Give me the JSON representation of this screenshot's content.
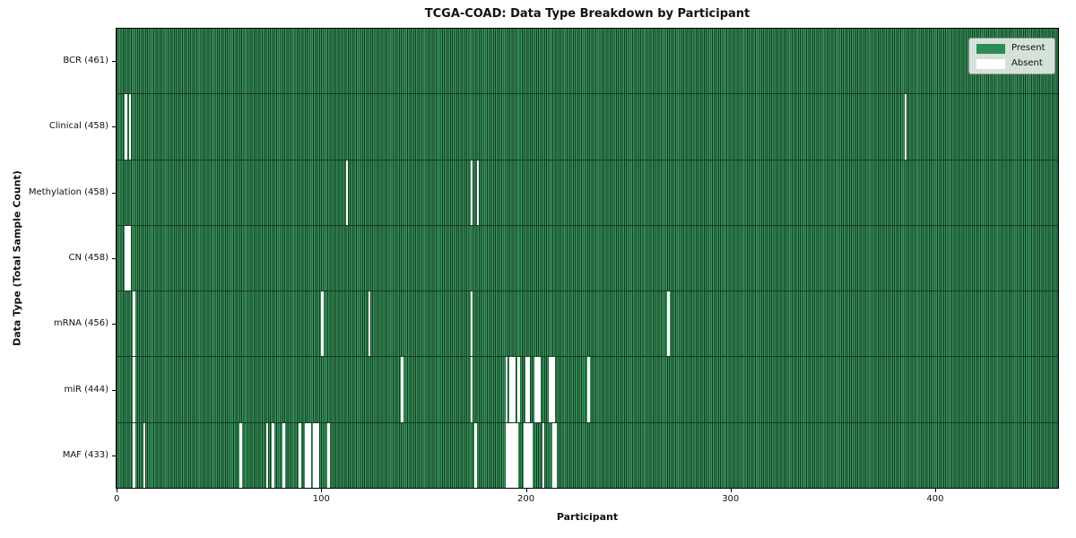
{
  "title": "TCGA-COAD: Data Type Breakdown by Participant",
  "colors": {
    "present": "#2E8B57",
    "present_stripe_light": "#37965f",
    "bar_edge": "#15381f",
    "absent": "#ffffff",
    "spine": "#000000"
  },
  "legend": {
    "entries": [
      {
        "label": "Present",
        "swatch": "present"
      },
      {
        "label": "Absent",
        "swatch": "absent"
      }
    ]
  },
  "chart_data": {
    "type": "heatmap",
    "title": "TCGA-COAD: Data Type Breakdown by Participant",
    "xlabel": "Participant",
    "ylabel": "Data Type (Total Sample Count)",
    "x_ticks": [
      0,
      100,
      200,
      300,
      400
    ],
    "x_range": [
      0,
      461
    ],
    "total_participants": 461,
    "legend_labels": [
      "Present",
      "Absent"
    ],
    "legend_position": "upper right",
    "grid": false,
    "rows": [
      {
        "name": "BCR",
        "label": "BCR (461)",
        "count": 461,
        "missing": []
      },
      {
        "name": "Clinical",
        "label": "Clinical (458)",
        "count": 458,
        "missing": [
          4,
          6,
          385
        ]
      },
      {
        "name": "Methylation",
        "label": "Methylation (458)",
        "count": 458,
        "missing": [
          112,
          173,
          176
        ]
      },
      {
        "name": "CN",
        "label": "CN (458)",
        "count": 458,
        "missing": [
          4,
          5,
          6
        ]
      },
      {
        "name": "mRNA",
        "label": "mRNA (456)",
        "count": 456,
        "missing": [
          8,
          100,
          123,
          173,
          269
        ]
      },
      {
        "name": "miR",
        "label": "miR (444)",
        "count": 444,
        "missing": [
          8,
          139,
          173,
          190,
          192,
          193,
          194,
          196,
          200,
          201,
          204,
          205,
          206,
          211,
          212,
          213,
          230
        ]
      },
      {
        "name": "MAF",
        "label": "MAF (433)",
        "count": 433,
        "missing": [
          8,
          13,
          60,
          73,
          76,
          81,
          89,
          92,
          93,
          94,
          96,
          97,
          98,
          103,
          175,
          190,
          191,
          192,
          193,
          194,
          195,
          199,
          200,
          201,
          202,
          208,
          213,
          214
        ]
      }
    ]
  }
}
